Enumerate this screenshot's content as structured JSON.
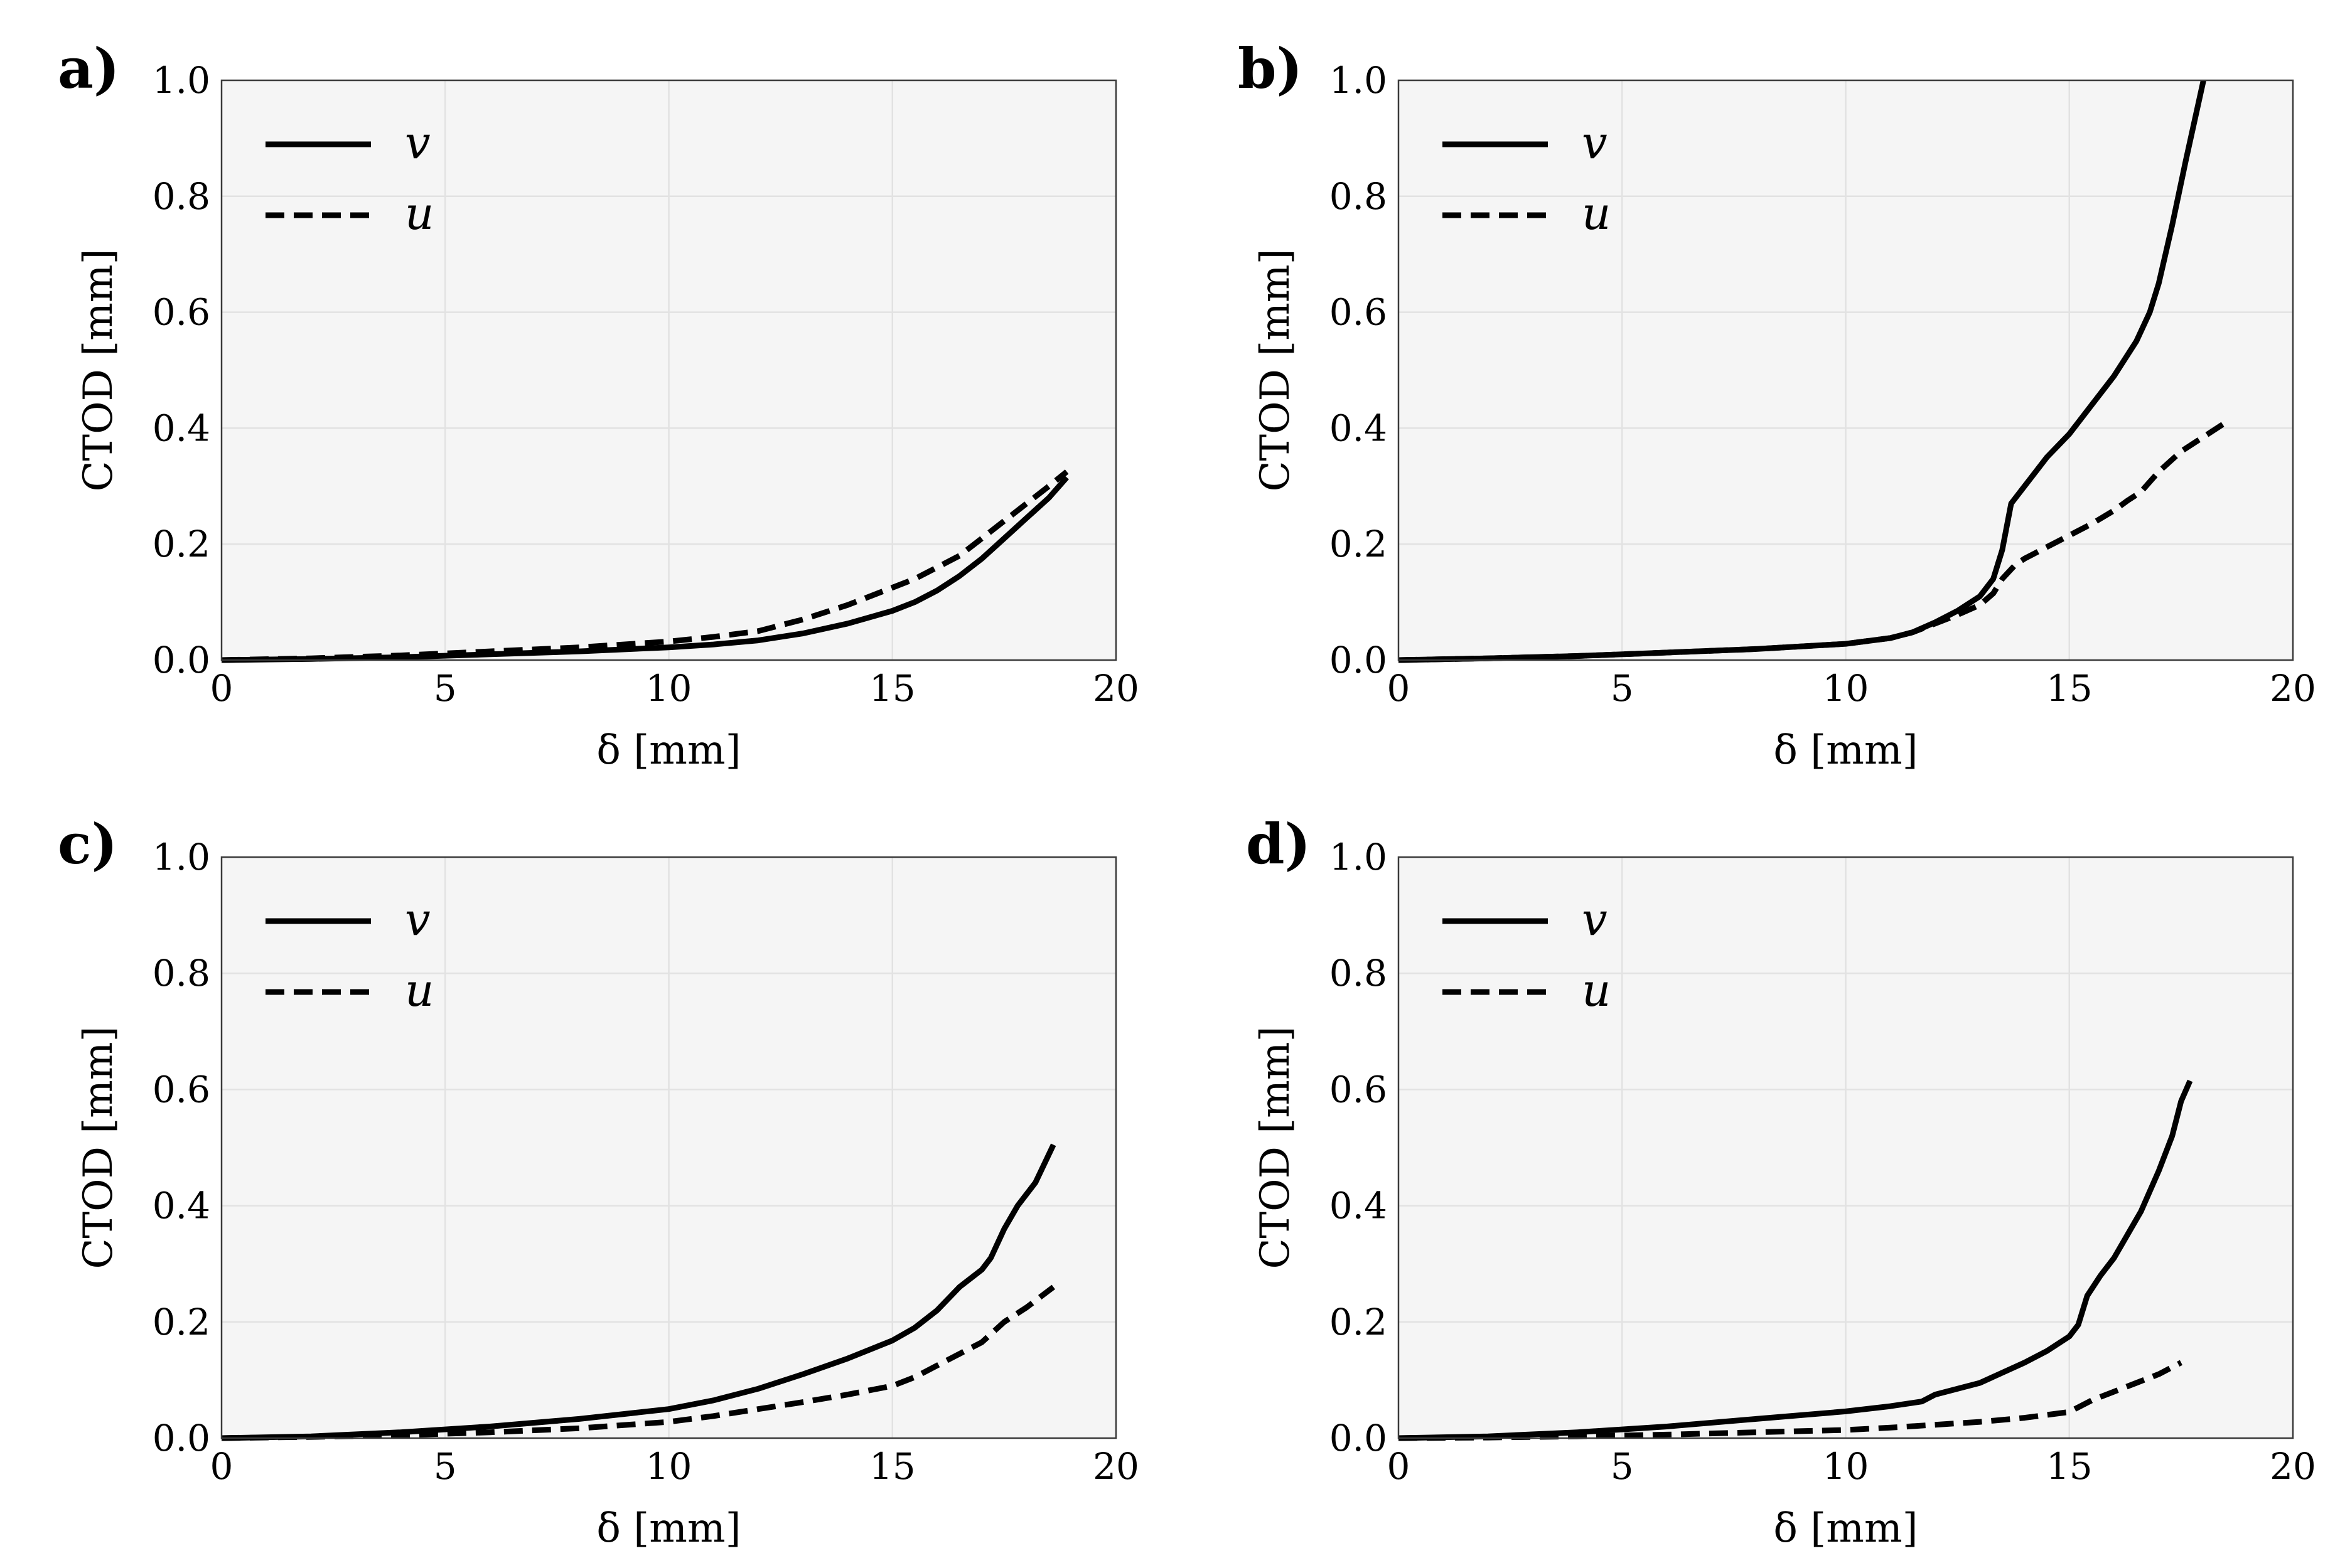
{
  "chart_data": [
    {
      "type": "line",
      "panel_label": "a)",
      "xlabel": "δ [mm]",
      "ylabel": "CTOD [mm]",
      "xlim": [
        0,
        20
      ],
      "ylim": [
        0,
        1.0
      ],
      "x_ticks": [
        "0",
        "5",
        "10",
        "15",
        "20"
      ],
      "y_ticks": [
        "0.0",
        "0.2",
        "0.4",
        "0.6",
        "0.8",
        "1.0"
      ],
      "grid": true,
      "legend_position": "top-left",
      "series": [
        {
          "name": "v",
          "style": "solid",
          "x": [
            0,
            2,
            4,
            6,
            8,
            10,
            11,
            12,
            13,
            14,
            15,
            15.5,
            16,
            16.5,
            17,
            17.5,
            18,
            18.5,
            18.9
          ],
          "y": [
            0,
            0.002,
            0.005,
            0.01,
            0.015,
            0.022,
            0.027,
            0.034,
            0.046,
            0.063,
            0.085,
            0.1,
            0.12,
            0.145,
            0.175,
            0.21,
            0.245,
            0.28,
            0.315
          ]
        },
        {
          "name": "u",
          "style": "dashed",
          "x": [
            0,
            2,
            4,
            6,
            8,
            10,
            11,
            12,
            13,
            14,
            15,
            15.5,
            16,
            16.5,
            17,
            17.5,
            18,
            18.5,
            18.9
          ],
          "y": [
            0,
            0.003,
            0.008,
            0.015,
            0.022,
            0.032,
            0.04,
            0.05,
            0.07,
            0.095,
            0.125,
            0.14,
            0.16,
            0.18,
            0.21,
            0.24,
            0.27,
            0.3,
            0.325
          ]
        }
      ]
    },
    {
      "type": "line",
      "panel_label": "b)",
      "xlabel": "δ [mm]",
      "ylabel": "CTOD [mm]",
      "xlim": [
        0,
        20
      ],
      "ylim": [
        0,
        1.0
      ],
      "x_ticks": [
        "0",
        "5",
        "10",
        "15",
        "20"
      ],
      "y_ticks": [
        "0.0",
        "0.2",
        "0.4",
        "0.6",
        "0.8",
        "1.0"
      ],
      "grid": true,
      "legend_position": "top-left",
      "series": [
        {
          "name": "v",
          "style": "solid",
          "x": [
            0,
            2,
            4,
            6,
            8,
            10,
            11,
            11.5,
            12,
            12.5,
            13,
            13.3,
            13.5,
            13.7,
            14,
            14.5,
            15,
            15.5,
            16,
            16.5,
            16.8,
            17,
            17.3,
            17.6,
            18
          ],
          "y": [
            0,
            0.003,
            0.007,
            0.013,
            0.019,
            0.028,
            0.038,
            0.048,
            0.065,
            0.085,
            0.11,
            0.14,
            0.19,
            0.27,
            0.3,
            0.35,
            0.39,
            0.44,
            0.49,
            0.55,
            0.6,
            0.65,
            0.75,
            0.86,
            1.0
          ]
        },
        {
          "name": "u",
          "style": "dashed",
          "x": [
            0,
            2,
            4,
            6,
            8,
            10,
            11,
            11.5,
            12,
            12.5,
            13,
            13.3,
            13.5,
            13.8,
            14,
            14.5,
            15,
            15.5,
            16,
            16.3,
            16.6,
            17,
            17.5,
            18,
            18.6
          ],
          "y": [
            0,
            0.003,
            0.007,
            0.013,
            0.019,
            0.028,
            0.038,
            0.048,
            0.063,
            0.078,
            0.095,
            0.115,
            0.14,
            0.165,
            0.175,
            0.195,
            0.215,
            0.235,
            0.258,
            0.275,
            0.29,
            0.325,
            0.36,
            0.385,
            0.415
          ]
        }
      ]
    },
    {
      "type": "line",
      "panel_label": "c)",
      "xlabel": "δ [mm]",
      "ylabel": "CTOD [mm]",
      "xlim": [
        0,
        20
      ],
      "ylim": [
        0,
        1.0
      ],
      "x_ticks": [
        "0",
        "5",
        "10",
        "15",
        "20"
      ],
      "y_ticks": [
        "0.0",
        "0.2",
        "0.4",
        "0.6",
        "0.8",
        "1.0"
      ],
      "grid": true,
      "legend_position": "top-left",
      "series": [
        {
          "name": "v",
          "style": "solid",
          "x": [
            0,
            2,
            4,
            6,
            8,
            10,
            11,
            12,
            13,
            14,
            15,
            15.5,
            16,
            16.5,
            17,
            17.2,
            17.5,
            17.8,
            18.2,
            18.6
          ],
          "y": [
            0,
            0.003,
            0.01,
            0.02,
            0.033,
            0.05,
            0.065,
            0.085,
            0.11,
            0.137,
            0.168,
            0.19,
            0.22,
            0.26,
            0.29,
            0.31,
            0.36,
            0.4,
            0.44,
            0.505
          ]
        },
        {
          "name": "u",
          "style": "dashed",
          "x": [
            0,
            2,
            4,
            6,
            8,
            10,
            11,
            12,
            13,
            14,
            15,
            15.5,
            16,
            16.5,
            17,
            17.5,
            18,
            18.6
          ],
          "y": [
            0,
            0.002,
            0.005,
            0.01,
            0.017,
            0.028,
            0.038,
            0.05,
            0.062,
            0.075,
            0.09,
            0.105,
            0.125,
            0.145,
            0.165,
            0.2,
            0.225,
            0.26
          ]
        }
      ]
    },
    {
      "type": "line",
      "panel_label": "d)",
      "xlabel": "δ [mm]",
      "ylabel": "CTOD [mm]",
      "xlim": [
        0,
        20
      ],
      "ylim": [
        0,
        1.0
      ],
      "x_ticks": [
        "0",
        "5",
        "10",
        "15",
        "20"
      ],
      "y_ticks": [
        "0.0",
        "0.2",
        "0.4",
        "0.6",
        "0.8",
        "1.0"
      ],
      "grid": true,
      "legend_position": "top-left",
      "series": [
        {
          "name": "v",
          "style": "solid",
          "x": [
            0,
            2,
            4,
            6,
            8,
            10,
            11,
            11.7,
            12,
            13,
            14,
            14.5,
            15,
            15.2,
            15.4,
            15.7,
            16,
            16.3,
            16.6,
            17,
            17.3,
            17.5,
            17.7
          ],
          "y": [
            0,
            0.003,
            0.01,
            0.02,
            0.033,
            0.046,
            0.055,
            0.063,
            0.075,
            0.095,
            0.13,
            0.15,
            0.175,
            0.195,
            0.245,
            0.28,
            0.31,
            0.35,
            0.39,
            0.46,
            0.52,
            0.58,
            0.615
          ]
        },
        {
          "name": "u",
          "style": "dashed",
          "x": [
            0,
            2,
            4,
            6,
            8,
            10,
            11,
            12,
            13,
            14,
            15,
            15.5,
            16,
            16.5,
            17,
            17.5
          ],
          "y": [
            0,
            0.001,
            0.003,
            0.006,
            0.01,
            0.014,
            0.018,
            0.023,
            0.028,
            0.035,
            0.045,
            0.065,
            0.08,
            0.095,
            0.11,
            0.13
          ]
        }
      ]
    }
  ]
}
